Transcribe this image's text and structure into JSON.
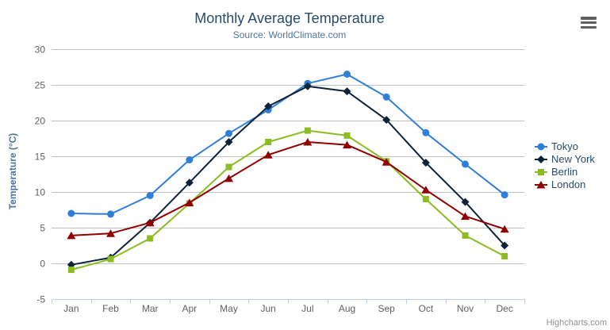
{
  "chart_data": {
    "type": "line",
    "title": "Monthly Average Temperature",
    "subtitle": "Source: WorldClimate.com",
    "categories": [
      "Jan",
      "Feb",
      "Mar",
      "Apr",
      "May",
      "Jun",
      "Jul",
      "Aug",
      "Sep",
      "Oct",
      "Nov",
      "Dec"
    ],
    "series": [
      {
        "name": "Tokyo",
        "color": "#2f7ed8",
        "marker": "circle",
        "values": [
          7.0,
          6.9,
          9.5,
          14.5,
          18.2,
          21.5,
          25.2,
          26.5,
          23.3,
          18.3,
          13.9,
          9.6
        ]
      },
      {
        "name": "New York",
        "color": "#0d233a",
        "marker": "diamond",
        "values": [
          -0.2,
          0.8,
          5.7,
          11.3,
          17.0,
          22.0,
          24.8,
          24.1,
          20.1,
          14.1,
          8.6,
          2.5
        ]
      },
      {
        "name": "Berlin",
        "color": "#8bbc21",
        "marker": "square",
        "values": [
          -0.9,
          0.6,
          3.5,
          8.4,
          13.5,
          17.0,
          18.6,
          17.9,
          14.3,
          9.0,
          3.9,
          1.0
        ]
      },
      {
        "name": "London",
        "color": "#910000",
        "marker": "triangle",
        "values": [
          3.9,
          4.2,
          5.7,
          8.5,
          11.9,
          15.2,
          17.0,
          16.6,
          14.2,
          10.3,
          6.6,
          4.8
        ]
      }
    ],
    "xlabel": "",
    "ylabel": "Temperature (°C)",
    "ylim": [
      -5,
      30
    ],
    "yticks": [
      30,
      25,
      20,
      15,
      10,
      5,
      0,
      -5
    ],
    "grid": "horizontal",
    "legend_position": "right"
  },
  "credits": {
    "label": "Highcharts.com"
  },
  "icons": {
    "export_menu": "hamburger-icon"
  },
  "colors": {
    "title": "#274b6d",
    "subtitle": "#4d759e",
    "axis_labels": "#606060",
    "grid_line": "#c0c0c0",
    "axis_line": "#c0d0e0",
    "legend_text": "#274b6d",
    "credits_text": "#909090"
  }
}
